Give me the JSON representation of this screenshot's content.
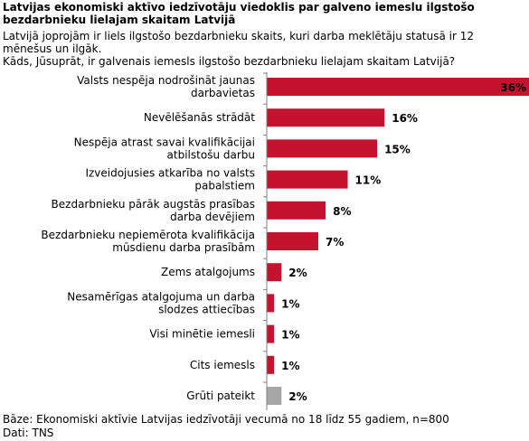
{
  "header": {
    "title": "Latvijas ekonomiski aktīvo iedzīvotāju viedoklis par galveno iemeslu ilgstošo bezdarbnieku lielajam skaitam Latvijā",
    "intro": "Latvijā joprojām ir liels ilgstošo bezdarbnieku skaits, kuri darba meklētāju statusā ir 12 mēnešus un ilgāk.",
    "question": "Kāds, Jūsuprāt, ir galvenais iemesls ilgstošo bezdarbnieku lielajam skaitam Latvijā?"
  },
  "footer": {
    "base": "Bāze: Ekonomiski aktīvie Latvijas iedzīvotāji vecumā no 18 līdz 55 gadiem, n=800",
    "source": "Dati: TNS"
  },
  "chart_data": {
    "type": "bar",
    "orientation": "horizontal",
    "title": "",
    "xlabel": "",
    "ylabel": "",
    "xlim": [
      0,
      36
    ],
    "grid": false,
    "legend": "none",
    "categories": [
      [
        "Valsts nespēja nodrošināt jaunas",
        "darbavietas"
      ],
      [
        "Nevēlēšanās strādāt"
      ],
      [
        "Nespēja atrast savai kvalifikācijai",
        "atbilstošu darbu"
      ],
      [
        "Izveidojusies atkarība no valsts",
        "pabalstiem"
      ],
      [
        "Bezdarbnieku pārāk augstās prasības",
        "darba devējiem"
      ],
      [
        "Bezdarbnieku nepiemērota kvalifikācija",
        "mūsdienu darba prasībām"
      ],
      [
        "Zems atalgojums"
      ],
      [
        "Nesamērīgas atalgojuma un darba",
        "slodzes attiecības"
      ],
      [
        "Visi minētie iemesli"
      ],
      [
        "Cits iemesls"
      ],
      [
        "Grūti pateikt"
      ]
    ],
    "values": [
      36,
      16,
      15,
      11,
      8,
      7,
      2,
      1,
      1,
      1,
      2
    ],
    "value_labels": [
      "36%",
      "16%",
      "15%",
      "11%",
      "8%",
      "7%",
      "2%",
      "1%",
      "1%",
      "1%",
      "2%"
    ],
    "colors": [
      "#c4122f",
      "#c4122f",
      "#c4122f",
      "#c4122f",
      "#c4122f",
      "#c4122f",
      "#c4122f",
      "#c4122f",
      "#c4122f",
      "#c4122f",
      "#a6a6a6"
    ],
    "axis_color": "#808080"
  }
}
